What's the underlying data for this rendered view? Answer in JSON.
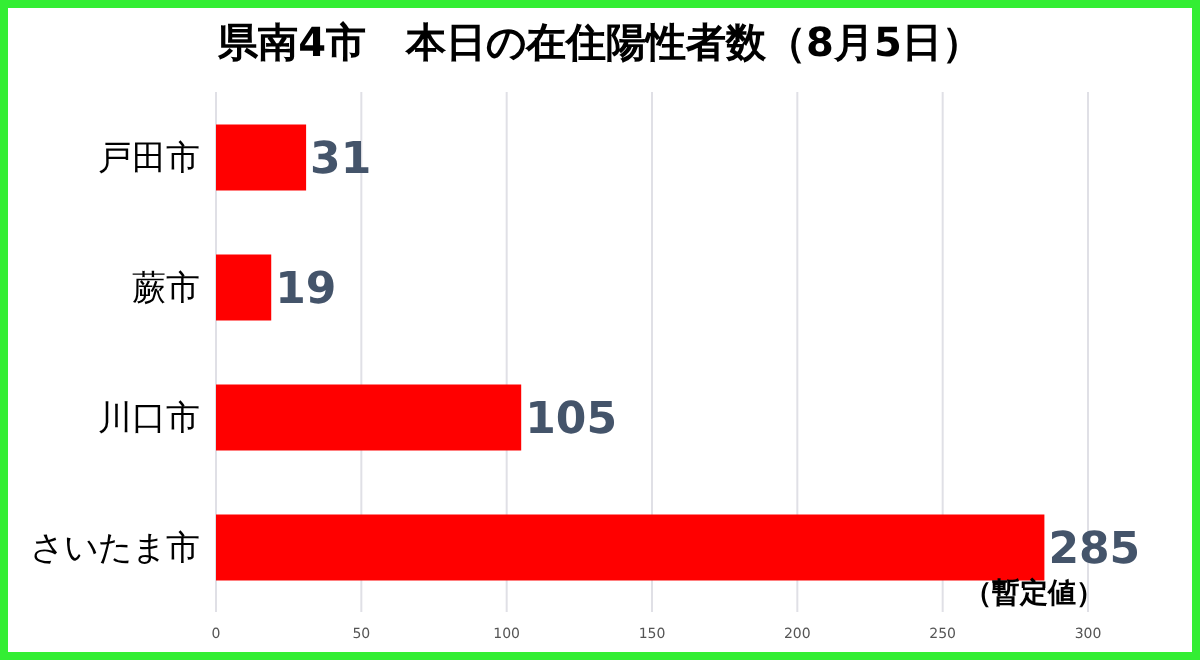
{
  "chart_data": {
    "type": "bar",
    "orientation": "horizontal",
    "title": "県南4市　本日の在住陽性者数（8月5日）",
    "categories": [
      "戸田市",
      "蕨市",
      "川口市",
      "さいたま市"
    ],
    "values": [
      31,
      19,
      105,
      285
    ],
    "color": "#ff0000",
    "data_labels": true,
    "xlim": [
      0,
      300
    ],
    "xticks": [
      0,
      50,
      100,
      150,
      200,
      250,
      300
    ],
    "grid": "x",
    "annotations": [
      {
        "text": "（暫定値）",
        "x": 285,
        "y": "さいたま市"
      }
    ]
  }
}
